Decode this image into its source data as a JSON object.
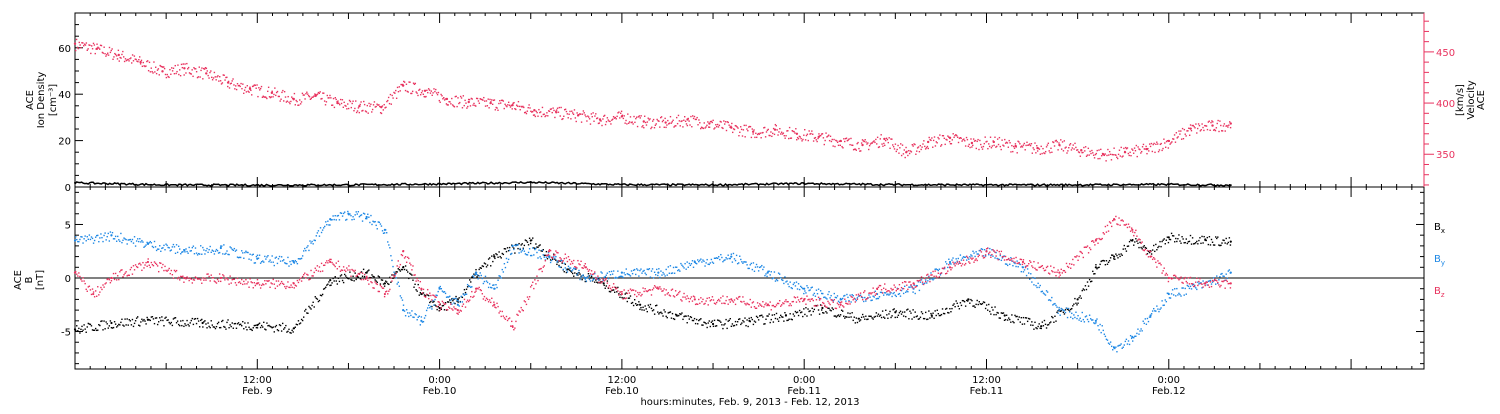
{
  "colors": {
    "black": "#000000",
    "pink": "#e8325e",
    "blue": "#1e88e5"
  },
  "chart_data": [
    {
      "type": "scatter",
      "panel": "top",
      "ylabel_left": [
        "ACE",
        "Ion Density",
        "[cm⁻³]"
      ],
      "ylabel_right": [
        "ACE",
        "Velocity",
        "[km/s]"
      ],
      "ylim_left": [
        0,
        75
      ],
      "yticks_left": [
        "0",
        "20",
        "40",
        "60"
      ],
      "ylim_right": [
        318,
        488
      ],
      "yticks_right": [
        "350",
        "400",
        "450"
      ],
      "series": [
        {
          "name": "ACE Velocity",
          "axis": "right",
          "color": "pink",
          "x": [
            0.0,
            0.06,
            0.12,
            0.18,
            0.24,
            0.3,
            0.36,
            0.42,
            0.48,
            0.54,
            0.6,
            0.66,
            0.72,
            0.78,
            0.84,
            0.9,
            0.96,
            1.02,
            1.08,
            1.14,
            1.2,
            1.26,
            1.32,
            1.38,
            1.44,
            1.5,
            1.56,
            1.62,
            1.68,
            1.74,
            1.8,
            1.86,
            1.92,
            1.98,
            2.04,
            2.1,
            2.16,
            2.22,
            2.28,
            2.34,
            2.4,
            2.46,
            2.52,
            2.58,
            2.64,
            2.7,
            2.76,
            2.82,
            2.88,
            2.94,
            3.0,
            3.06,
            3.12,
            3.17
          ],
          "values": [
            458,
            453,
            447,
            440,
            431,
            434,
            429,
            420,
            414,
            410,
            404,
            407,
            400,
            397,
            396,
            417,
            412,
            404,
            401,
            400,
            398,
            393,
            391,
            388,
            384,
            387,
            382,
            381,
            384,
            380,
            376,
            372,
            374,
            370,
            367,
            363,
            359,
            365,
            352,
            362,
            366,
            361,
            362,
            358,
            356,
            359,
            354,
            350,
            352,
            355,
            363,
            375,
            378,
            380
          ]
        },
        {
          "name": "ACE Ion Density",
          "axis": "left",
          "color": "black",
          "x": [
            0.0,
            0.25,
            0.5,
            0.75,
            1.0,
            1.25,
            1.5,
            1.75,
            2.0,
            2.25,
            2.5,
            2.75,
            3.0,
            3.17
          ],
          "values": [
            1.8,
            0.9,
            0.8,
            0.9,
            1.3,
            2.0,
            1.0,
            0.9,
            1.5,
            1.0,
            0.9,
            0.9,
            1.1,
            0.8
          ]
        }
      ]
    },
    {
      "type": "line",
      "panel": "bottom",
      "ylabel": [
        "ACE",
        "B",
        "[nT]"
      ],
      "ylim": [
        -8.5,
        8.5
      ],
      "yticks": [
        "-5",
        "0",
        "5"
      ],
      "series": [
        {
          "name": "Bx",
          "label_main": "B",
          "label_sub": "x",
          "color": "black",
          "x": [
            0.0,
            0.1,
            0.2,
            0.35,
            0.5,
            0.6,
            0.7,
            0.8,
            0.85,
            0.9,
            0.95,
            1.0,
            1.05,
            1.1,
            1.15,
            1.25,
            1.35,
            1.45,
            1.55,
            1.65,
            1.75,
            1.85,
            1.95,
            2.05,
            2.15,
            2.25,
            2.35,
            2.45,
            2.55,
            2.65,
            2.75,
            2.8,
            2.85,
            2.9,
            2.95,
            3.0,
            3.1,
            3.17
          ],
          "values": [
            -4.8,
            -4.2,
            -3.9,
            -4.2,
            -4.4,
            -4.7,
            -0.2,
            0.5,
            -0.5,
            1.0,
            -1.5,
            -2.8,
            -2.0,
            0.5,
            2.0,
            3.5,
            0.8,
            -0.5,
            -2.5,
            -3.5,
            -4.3,
            -4.0,
            -3.5,
            -2.8,
            -3.8,
            -3.2,
            -3.5,
            -2.0,
            -3.5,
            -4.5,
            -2.0,
            1.0,
            2.0,
            3.5,
            2.5,
            3.8,
            3.6,
            3.4
          ]
        },
        {
          "name": "By",
          "label_main": "B",
          "label_sub": "y",
          "color": "blue",
          "x": [
            0.0,
            0.1,
            0.2,
            0.3,
            0.4,
            0.5,
            0.6,
            0.7,
            0.75,
            0.8,
            0.85,
            0.9,
            0.95,
            1.0,
            1.05,
            1.1,
            1.15,
            1.2,
            1.3,
            1.4,
            1.5,
            1.6,
            1.7,
            1.8,
            1.9,
            2.0,
            2.1,
            2.2,
            2.3,
            2.4,
            2.5,
            2.6,
            2.7,
            2.8,
            2.85,
            2.9,
            2.95,
            3.0,
            3.1,
            3.17
          ],
          "values": [
            3.5,
            4.0,
            3.2,
            2.6,
            2.8,
            1.8,
            1.5,
            5.5,
            6.0,
            5.7,
            4.5,
            -3.0,
            -4.0,
            -1.0,
            -2.5,
            0.5,
            -1.0,
            3.0,
            2.0,
            0.0,
            0.5,
            0.5,
            1.5,
            2.0,
            0.5,
            -1.0,
            -2.0,
            -1.5,
            -1.0,
            1.5,
            2.5,
            1.0,
            -3.0,
            -4.0,
            -6.5,
            -5.5,
            -3.5,
            -1.5,
            -0.5,
            0.5
          ]
        },
        {
          "name": "Bz",
          "label_main": "B",
          "label_sub": "z",
          "color": "pink",
          "x": [
            0.0,
            0.05,
            0.1,
            0.2,
            0.3,
            0.4,
            0.5,
            0.6,
            0.7,
            0.8,
            0.85,
            0.9,
            0.95,
            1.0,
            1.05,
            1.1,
            1.15,
            1.2,
            1.3,
            1.4,
            1.5,
            1.6,
            1.7,
            1.8,
            1.9,
            2.0,
            2.1,
            2.2,
            2.3,
            2.4,
            2.5,
            2.6,
            2.7,
            2.8,
            2.85,
            2.9,
            2.95,
            3.0,
            3.1,
            3.17
          ],
          "values": [
            0.5,
            -1.5,
            0.0,
            1.5,
            0.0,
            0.0,
            -0.5,
            -0.5,
            1.5,
            0.0,
            -1.5,
            2.5,
            -1.0,
            -2.5,
            -3.0,
            -1.0,
            -2.5,
            -4.5,
            2.5,
            1.0,
            -1.5,
            -1.0,
            -2.0,
            -2.0,
            -2.5,
            -2.0,
            -2.5,
            -1.0,
            -0.5,
            1.0,
            2.5,
            1.5,
            0.5,
            3.5,
            5.5,
            4.5,
            2.0,
            0.0,
            -0.5,
            -0.5
          ]
        }
      ]
    }
  ],
  "x_axis": {
    "range_days": [
      0,
      3.7
    ],
    "ticks": [
      {
        "day": 0.5,
        "time": "12:00",
        "date": "Feb. 9"
      },
      {
        "day": 1.0,
        "time": "0:00",
        "date": "Feb.10"
      },
      {
        "day": 1.5,
        "time": "12:00",
        "date": "Feb.10"
      },
      {
        "day": 2.0,
        "time": "0:00",
        "date": "Feb.11"
      },
      {
        "day": 2.5,
        "time": "12:00",
        "date": "Feb.11"
      },
      {
        "day": 3.0,
        "time": "0:00",
        "date": "Feb.12"
      }
    ],
    "title": "hours:minutes, Feb. 9, 2013 - Feb. 12, 2013"
  }
}
